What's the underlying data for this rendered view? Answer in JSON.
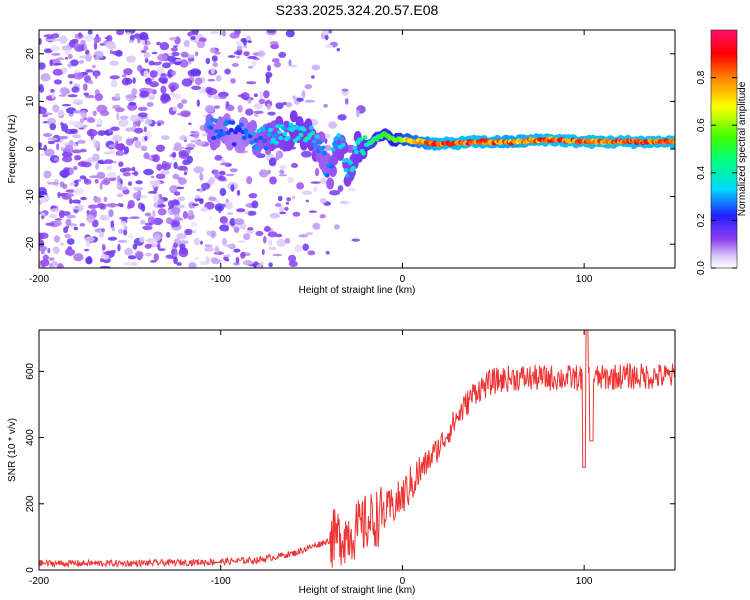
{
  "page_title": "S233.2025.324.20.57.E08",
  "chart_data": [
    {
      "type": "heatmap",
      "xlabel": "Height of straight line (km)",
      "ylabel": "Frequency (Hz)",
      "xlim": [
        -200,
        150
      ],
      "ylim": [
        -25,
        25
      ],
      "xticks": [
        -200,
        -100,
        0,
        100
      ],
      "yticks": [
        -20,
        -10,
        0,
        10,
        20
      ],
      "colorbar": {
        "label": "Normalized spectral amplitude",
        "range": [
          0,
          1
        ],
        "ticks": [
          0.0,
          0.2,
          0.4,
          0.6,
          0.8
        ]
      },
      "ridge": {
        "description_x": [
          -107,
          -90,
          -80,
          -70,
          -60,
          -50,
          -45,
          -40,
          -35,
          -30,
          -25,
          -20,
          -15,
          -10,
          -5,
          0,
          10,
          20,
          40,
          60,
          80,
          100,
          120,
          150
        ],
        "frequency": [
          4,
          3,
          2,
          3,
          4,
          2,
          0,
          -5,
          2,
          -5,
          0,
          1,
          2,
          3,
          2,
          2,
          1.5,
          1,
          1.5,
          1.5,
          2,
          1.5,
          1.5,
          1.5
        ],
        "amplitude": [
          0.3,
          0.25,
          0.3,
          0.35,
          0.4,
          0.4,
          0.3,
          0.3,
          0.35,
          0.35,
          0.4,
          0.45,
          0.5,
          0.55,
          0.6,
          0.7,
          0.8,
          0.9,
          0.9,
          0.85,
          0.9,
          0.9,
          0.9,
          0.9
        ]
      }
    },
    {
      "type": "line",
      "xlabel": "Height of straight line (km)",
      "ylabel": "SNR (10 * v/v)",
      "xlim": [
        -200,
        150
      ],
      "ylim": [
        0,
        725
      ],
      "xticks": [
        -200,
        -100,
        0,
        100
      ],
      "yticks": [
        0,
        200,
        400,
        600
      ],
      "series": [
        {
          "name": "SNR",
          "color": "#ee3333",
          "x": [
            -200,
            -150,
            -100,
            -80,
            -70,
            -60,
            -50,
            -40,
            -30,
            -25,
            -20,
            -10,
            0,
            10,
            20,
            30,
            40,
            50,
            60,
            80,
            90,
            100,
            110,
            120,
            130,
            150
          ],
          "y": [
            20,
            20,
            25,
            30,
            40,
            50,
            70,
            90,
            110,
            120,
            140,
            170,
            220,
            300,
            370,
            460,
            540,
            570,
            580,
            580,
            580,
            580,
            580,
            585,
            585,
            585
          ]
        }
      ]
    }
  ]
}
